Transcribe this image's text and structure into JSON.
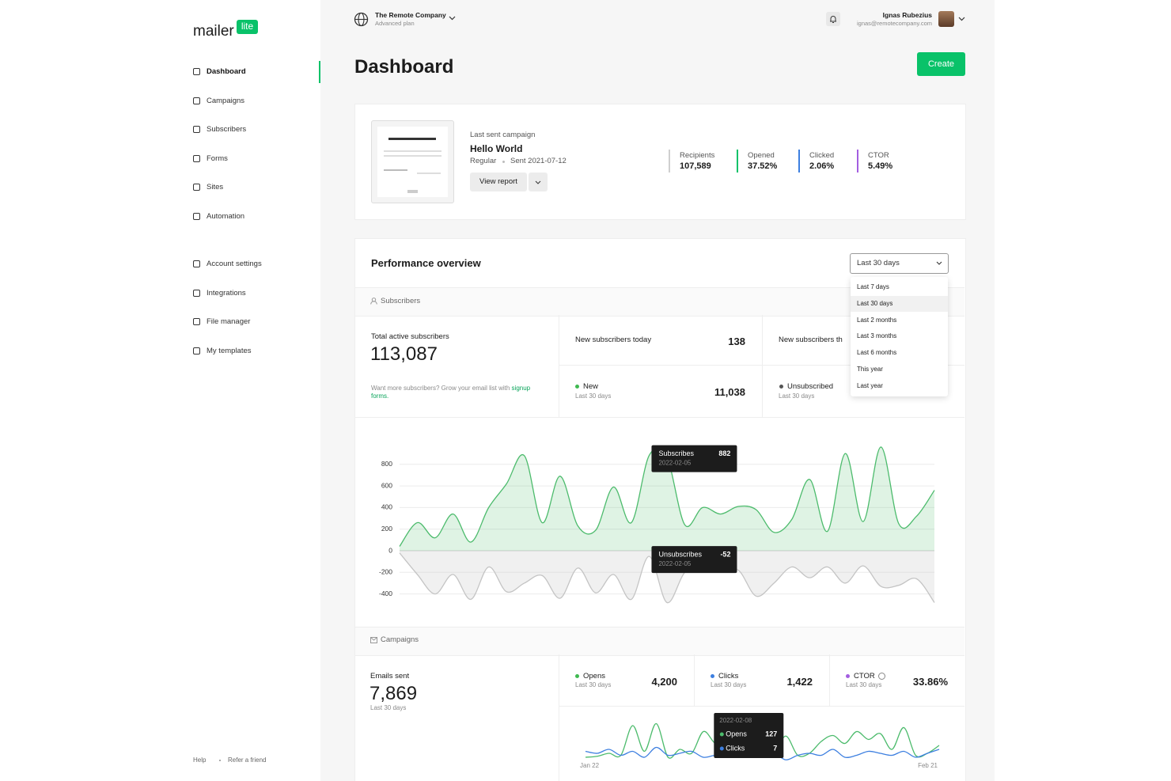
{
  "sidebar": {
    "logo": "mailer",
    "logo_badge": "lite",
    "nav": [
      "Dashboard",
      "Campaigns",
      "Subscribers",
      "Forms",
      "Sites",
      "Automation"
    ],
    "nav_settings": [
      "Account settings",
      "Integrations",
      "File manager",
      "My templates"
    ],
    "footer": [
      "Help",
      "Refer a friend"
    ]
  },
  "topbar": {
    "company": "The Remote Company",
    "plan": "Advanced plan",
    "user_name": "Ignas Rubezius",
    "user_email": "ignas@remotecompany.com"
  },
  "header": {
    "title": "Dashboard",
    "button": "Create"
  },
  "last_campaign": {
    "label": "Last sent campaign",
    "name": "Hello World",
    "type": "Regular",
    "sent": "Sent 2021-07-12",
    "button": "View report",
    "stats": [
      {
        "label": "Recipients",
        "value": "107,589",
        "color": "#cfcfcf"
      },
      {
        "label": "Opened",
        "value": "37.52%",
        "color": "#09c269"
      },
      {
        "label": "Clicked",
        "value": "2.06%",
        "color": "#3d7fe0"
      },
      {
        "label": "CTOR",
        "value": "5.49%",
        "color": "#a35ee0"
      }
    ]
  },
  "performance": {
    "title": "Performance overview",
    "range": "Last 30 days",
    "range_options": [
      "Last 7 days",
      "Last 30 days",
      "Last 2 months",
      "Last 3 months",
      "Last 6 months",
      "This year",
      "Last year"
    ],
    "subscribers": {
      "section": "Subscribers",
      "total_label": "Total active subscribers",
      "total": "113,087",
      "hint": "Want more subscribers? Grow your email list with",
      "hint_link": "signup forms.",
      "today_label": "New subscribers today",
      "today": "138",
      "new_label": "New",
      "new_period": "Last 30 days",
      "new_value": "11,038",
      "period_label": "New subscribers th",
      "unsub_label": "Unsubscribed",
      "unsub_period": "Last 30 days"
    },
    "campaigns": {
      "section": "Campaigns",
      "sent_label": "Emails sent",
      "sent": "7,869",
      "sent_period": "Last 30 days",
      "stats": [
        {
          "label": "Opens",
          "period": "Last 30 days",
          "value": "4,200",
          "color": "#3fb950"
        },
        {
          "label": "Clicks",
          "period": "Last 30 days",
          "value": "1,422",
          "color": "#3d7fe0"
        },
        {
          "label": "CTOR",
          "period": "Last 30 days",
          "value": "33.86%",
          "color": "#a35ee0"
        }
      ]
    }
  },
  "chart_data": [
    {
      "type": "area",
      "categories": [
        null,
        null,
        null,
        null,
        null,
        null,
        null,
        null,
        null,
        null,
        null,
        null,
        null,
        null,
        "2022-02-05",
        null,
        null,
        null,
        null,
        null,
        null,
        null,
        null,
        null,
        null,
        null,
        null,
        null,
        null,
        null,
        null
      ],
      "series": [
        {
          "name": "Subscribes",
          "color": "#4cbb6c",
          "values": [
            40,
            260,
            120,
            340,
            80,
            400,
            620,
            880,
            260,
            690,
            230,
            190,
            590,
            260,
            882,
            860,
            240,
            400,
            340,
            410,
            380,
            170,
            290,
            660,
            180,
            900,
            270,
            960,
            250,
            320,
            560
          ]
        },
        {
          "name": "Unsubscribes",
          "color": "#c4c4c4",
          "values": [
            -20,
            -220,
            -400,
            -220,
            -450,
            -150,
            -380,
            -300,
            -230,
            -440,
            -160,
            -390,
            -220,
            -450,
            -52,
            -480,
            -200,
            -150,
            -200,
            -180,
            -420,
            -300,
            -150,
            -250,
            -150,
            -300,
            -140,
            -330,
            -320,
            -260,
            -480
          ]
        }
      ],
      "ylim": [
        -500,
        1000
      ],
      "yticks": [
        -400,
        -200,
        0,
        200,
        400,
        600,
        800
      ],
      "grid": true
    },
    {
      "type": "line",
      "categories": [
        "Jan 22",
        null,
        null,
        null,
        null,
        null,
        null,
        null,
        null,
        null,
        null,
        null,
        null,
        null,
        null,
        null,
        null,
        "2022-02-08",
        null,
        null,
        null,
        null,
        null,
        null,
        null,
        null,
        null,
        null,
        null,
        null,
        "Feb 21"
      ],
      "series": [
        {
          "name": "Opens",
          "color": "#4cbb6c",
          "values": [
            20,
            25,
            40,
            30,
            180,
            50,
            190,
            20,
            60,
            40,
            150,
            90,
            80,
            120,
            60,
            40,
            45,
            127,
            30,
            40,
            100,
            130,
            90,
            150,
            110,
            140,
            60,
            170,
            30,
            40,
            80
          ]
        },
        {
          "name": "Clicks",
          "color": "#3d7fe0",
          "values": [
            50,
            40,
            60,
            30,
            50,
            20,
            70,
            30,
            40,
            50,
            20,
            30,
            30,
            40,
            20,
            30,
            40,
            7,
            30,
            40,
            30,
            60,
            20,
            30,
            50,
            40,
            30,
            50,
            20,
            40,
            60
          ]
        }
      ],
      "ylim": [
        0,
        200
      ]
    }
  ]
}
